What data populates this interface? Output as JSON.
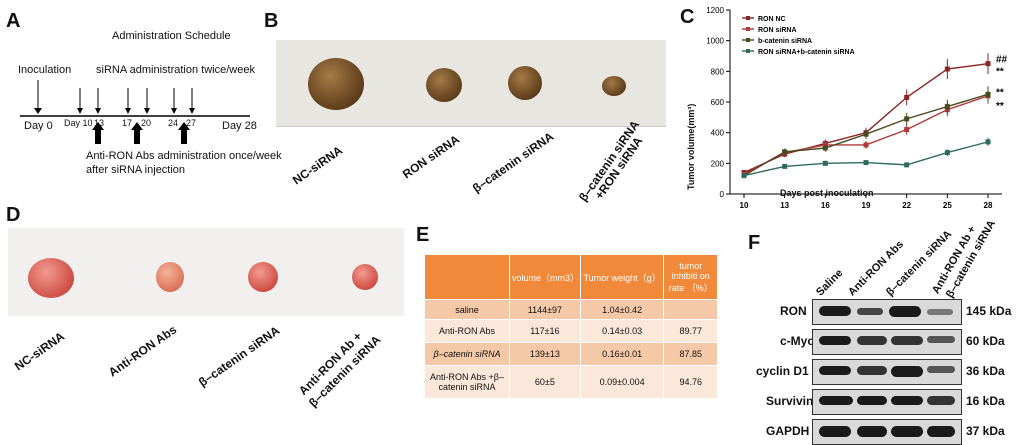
{
  "panels": {
    "a": "A",
    "b": "B",
    "c": "C",
    "d": "D",
    "e": "E",
    "f": "F"
  },
  "schedule": {
    "title": "Administration Schedule",
    "inoculation": "Inoculation",
    "sirna_admin": "siRNA administration twice/week",
    "day0": "Day 0",
    "day_ticks": [
      "Day 10",
      "13",
      "17",
      "20",
      "24",
      "27"
    ],
    "day28": "Day 28",
    "abs_admin_1": "Anti-RON Abs administration once/week",
    "abs_admin_2": "after siRNA injection"
  },
  "panel_b_labels": [
    "NC-siRNA",
    "RON siRNA",
    "β–catenin siRNA",
    "β–catenin siRNA",
    "+RON siRNA"
  ],
  "panel_d_labels": [
    "NC-siRNA",
    "Anti-RON Abs",
    "β–catenin siRNA",
    "Anti-RON Ab +",
    "β–catenin siRNA"
  ],
  "chart_data": {
    "type": "line",
    "x": [
      10,
      13,
      16,
      19,
      22,
      25,
      28
    ],
    "xlabel": "Days post inoculation",
    "ylabel": "Tumor volume(mm³)",
    "ylim": [
      0,
      1200
    ],
    "yticks": [
      0,
      200,
      400,
      600,
      800,
      1000,
      1200
    ],
    "series": [
      {
        "name": "RON NC",
        "color": "#8b2323",
        "values": [
          140,
          260,
          330,
          400,
          630,
          815,
          850
        ]
      },
      {
        "name": "RON siRNA",
        "color": "#b03a3a",
        "values": [
          130,
          270,
          320,
          320,
          420,
          550,
          640
        ]
      },
      {
        "name": "b-catenin siRNA",
        "color": "#4a4a1e",
        "values": [
          120,
          275,
          300,
          390,
          490,
          570,
          650
        ]
      },
      {
        "name": "RON siRNA+b-catenin siRNA",
        "color": "#2e6b5e",
        "values": [
          120,
          180,
          200,
          205,
          190,
          270,
          340
        ]
      }
    ],
    "annotations": [
      "##",
      "**",
      "**",
      "**"
    ],
    "legend": "top-left"
  },
  "table": {
    "headers": [
      "",
      "volume（mm3）",
      "Tumor weight（g）",
      "tumor inhibiti on rate （%）"
    ],
    "rows": [
      [
        "saline",
        "1144±97",
        "1.04±0.42",
        ""
      ],
      [
        "Anti-RON Abs",
        "117±16",
        "0.14±0.03",
        "89.77"
      ],
      [
        "β–catenin siRNA",
        "139±13",
        "0.16±0.01",
        "87.85"
      ],
      [
        "Anti-RON Abs +β–catenin siRNA",
        "60±5",
        "0.09±0.004",
        "94.76"
      ]
    ]
  },
  "blot": {
    "lanes": [
      "Saline",
      "Anti-RON Abs",
      "β–catenin siRNA",
      "Anti-RON Ab +",
      "β–catenin siRNA"
    ],
    "proteins": [
      "RON",
      "c-Myc",
      "cyclin D1",
      "Survivin",
      "GAPDH"
    ],
    "sizes": [
      "145 kDa",
      "60 kDa",
      "36 kDa",
      "16 kDa",
      "37 kDa"
    ]
  },
  "colors": {
    "table_header": "#f08a3a",
    "table_dark": "#f5c9a7",
    "table_light": "#fbe8da",
    "photo_bg": "#e8e6e0"
  }
}
